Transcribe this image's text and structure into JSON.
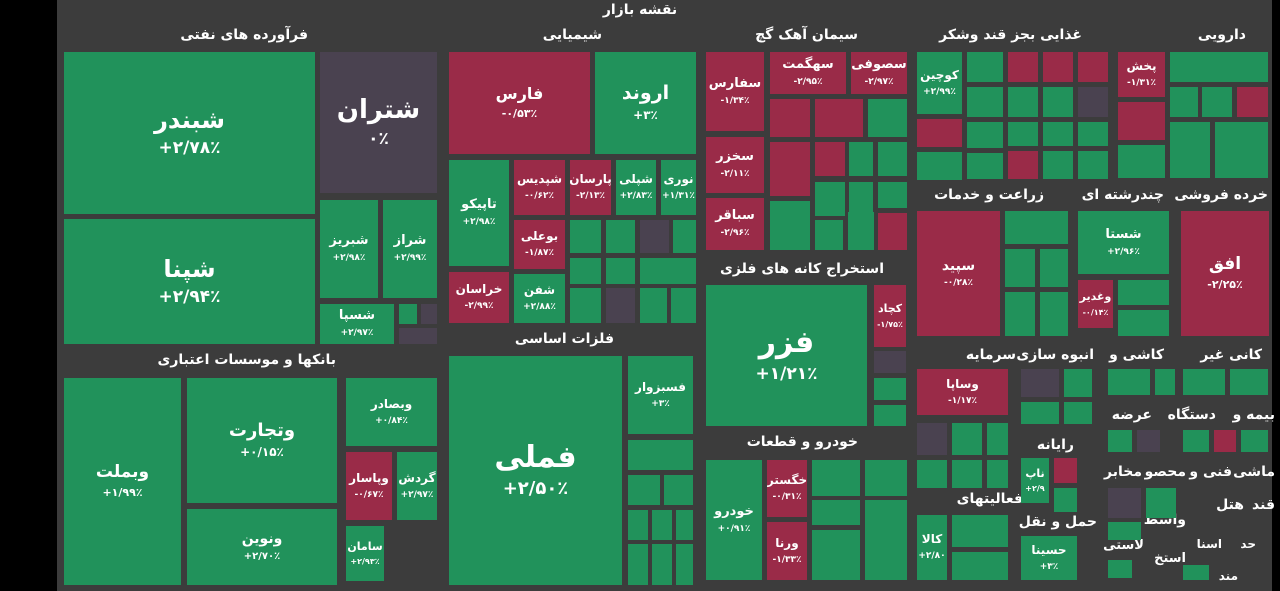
{
  "chart_data": {
    "type": "treemap",
    "title": "نقشه بازار",
    "colors": {
      "up": "#21925b",
      "down": "#9a2b48",
      "flat": "#4a4250",
      "blank": "#454545"
    },
    "sectors": [
      {
        "name": "فرآورده های نفتی",
        "tiles": [
          {
            "symbol": "شبندر",
            "change": "+۲/۷۸٪"
          },
          {
            "symbol": "شتران",
            "change": "۰٪"
          },
          {
            "symbol": "شپنا",
            "change": "+۲/۹۴٪"
          },
          {
            "symbol": "شبریز",
            "change": "+۲/۹۸٪"
          },
          {
            "symbol": "شراز",
            "change": "+۲/۹۹٪"
          },
          {
            "symbol": "شسپا",
            "change": "+۲/۹۷٪"
          }
        ]
      },
      {
        "name": "شیمیایی",
        "tiles": [
          {
            "symbol": "فارس",
            "change": "-۰/۵۳٪"
          },
          {
            "symbol": "اروند",
            "change": "+۳٪"
          },
          {
            "symbol": "تاپیکو",
            "change": "+۲/۹۸٪"
          },
          {
            "symbol": "شپدیس",
            "change": "-۰/۶۲٪"
          },
          {
            "symbol": "پارسان",
            "change": "-۲/۱۳٪"
          },
          {
            "symbol": "شپلی",
            "change": "+۲/۸۳٪"
          },
          {
            "symbol": "نوری",
            "change": "+۱/۳۱٪"
          },
          {
            "symbol": "بوعلی",
            "change": "-۱/۸۷٪"
          },
          {
            "symbol": "خراسان",
            "change": "-۲/۹۹٪"
          },
          {
            "symbol": "شفن",
            "change": "+۲/۸۸٪"
          }
        ]
      },
      {
        "name": "سیمان آهک گچ",
        "tiles": [
          {
            "symbol": "سفارس",
            "change": "-۱/۳۴٪"
          },
          {
            "symbol": "سهگمت",
            "change": "-۲/۹۵٪"
          },
          {
            "symbol": "سصوفی",
            "change": "-۲/۹۷٪"
          },
          {
            "symbol": "سخزر",
            "change": "-۲/۱۱٪"
          },
          {
            "symbol": "سباقر",
            "change": "-۲/۹۶٪"
          }
        ]
      },
      {
        "name": "غذایی بجز قند وشکر",
        "tiles": [
          {
            "symbol": "کوچین",
            "change": "+۲/۹۹٪"
          }
        ]
      },
      {
        "name": "دارویی",
        "tiles": [
          {
            "symbol": "پخش",
            "change": "-۱/۳۱٪"
          }
        ]
      },
      {
        "name": "بانکها و موسسات اعتباری",
        "tiles": [
          {
            "symbol": "وبملت",
            "change": "+۱/۹۹٪"
          },
          {
            "symbol": "وتجارت",
            "change": "+۰/۱۵٪"
          },
          {
            "symbol": "وبصادر",
            "change": "+۰/۸۴٪"
          },
          {
            "symbol": "وپاسار",
            "change": "-۰/۶۷٪"
          },
          {
            "symbol": "گردش",
            "change": "+۲/۹۷٪"
          },
          {
            "symbol": "ونوین",
            "change": "+۲/۷۰٪"
          },
          {
            "symbol": "سامان",
            "change": "+۲/۹۳٪"
          }
        ]
      },
      {
        "name": "فلزات اساسی",
        "tiles": [
          {
            "symbol": "فملی",
            "change": "+۲/۵۰٪"
          },
          {
            "symbol": "فسبزوار",
            "change": "+۳٪"
          }
        ]
      },
      {
        "name": "استخراج کانه های فلزی",
        "tiles": [
          {
            "symbol": "فزر",
            "change": "+۱/۲۱٪"
          },
          {
            "symbol": "کچاد",
            "change": "-۱/۷۵٪"
          }
        ]
      },
      {
        "name": "خودرو و قطعات",
        "tiles": [
          {
            "symbol": "خودرو",
            "change": "+۰/۹۱٪"
          },
          {
            "symbol": "خگستر",
            "change": "-۰/۳۱٪"
          },
          {
            "symbol": "ورنا",
            "change": "-۱/۳۳٪"
          }
        ]
      },
      {
        "name": "زراعت و خدمات",
        "tiles": [
          {
            "symbol": "سپید",
            "change": "-۰/۲۸٪"
          }
        ]
      },
      {
        "name": "چندرشته ای",
        "tiles": [
          {
            "symbol": "شستا",
            "change": "+۲/۹۶٪"
          },
          {
            "symbol": "وغدیر",
            "change": "-۰/۱۴٪"
          }
        ]
      },
      {
        "name": "خرده فروشی",
        "tiles": [
          {
            "symbol": "افق",
            "change": "-۲/۲۵٪"
          }
        ]
      },
      {
        "name": "سرمایه",
        "tiles": [
          {
            "symbol": "وساپا",
            "change": "-۱/۱۷٪"
          }
        ]
      },
      {
        "name": "انبوه سازی",
        "tiles": []
      },
      {
        "name": "کاشی و",
        "tiles": []
      },
      {
        "name": "کانی غیر",
        "tiles": []
      },
      {
        "name": "رایانه",
        "tiles": [
          {
            "symbol": "ناپ",
            "change": "+۲/۹"
          }
        ]
      },
      {
        "name": "عرضه",
        "tiles": []
      },
      {
        "name": "بیمه و",
        "tiles": []
      },
      {
        "name": "دستگاه",
        "tiles": []
      },
      {
        "name": "مخابر",
        "tiles": []
      },
      {
        "name": "محصو",
        "tiles": []
      },
      {
        "name": "ماشی",
        "tiles": []
      },
      {
        "name": "فنی و",
        "tiles": []
      },
      {
        "name": "فعالیتهای",
        "tiles": [
          {
            "symbol": "کالا",
            "change": "+۲/۸۰"
          }
        ]
      },
      {
        "name": "حمل و نقل",
        "tiles": [
          {
            "symbol": "حسینا",
            "change": "+۳٪"
          }
        ]
      },
      {
        "name": "واسط",
        "tiles": []
      },
      {
        "name": "استخ",
        "tiles": []
      },
      {
        "name": "لاستی",
        "tiles": []
      },
      {
        "name": "قند",
        "tiles": []
      },
      {
        "name": "هتل",
        "tiles": []
      },
      {
        "name": "حد",
        "tiles": []
      },
      {
        "name": "اسنا",
        "tiles": []
      },
      {
        "name": "مند",
        "tiles": []
      }
    ]
  }
}
